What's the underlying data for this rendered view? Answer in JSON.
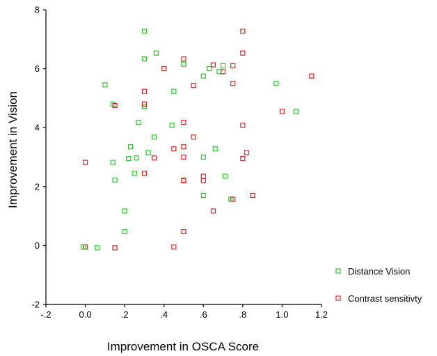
{
  "chart_data": {
    "type": "scatter",
    "xlabel": "Improvement in OSCA Score",
    "ylabel": "Improvement in Vision",
    "xlim": [
      -0.2,
      1.2
    ],
    "ylim": [
      -2,
      8
    ],
    "x_ticks": [
      -0.2,
      0.0,
      0.2,
      0.4,
      0.6,
      0.8,
      1.0,
      1.2
    ],
    "x_tick_labels": [
      "-.2",
      "0.0",
      ".2",
      ".4",
      ".6",
      ".8",
      "1.0",
      "1.2"
    ],
    "y_ticks": [
      -2,
      0,
      2,
      4,
      6,
      8
    ],
    "y_tick_labels": [
      "-2",
      "0",
      "2",
      "4",
      "6",
      "8"
    ],
    "marker": "open-square",
    "legend_position": "bottom-right",
    "series": [
      {
        "name": "Distance Vision",
        "color": "#22cc22",
        "points": [
          {
            "x": -0.01,
            "y": -0.05
          },
          {
            "x": 0.0,
            "y": -0.05
          },
          {
            "x": 0.06,
            "y": -0.08
          },
          {
            "x": 0.1,
            "y": 5.45
          },
          {
            "x": 0.14,
            "y": 4.8
          },
          {
            "x": 0.14,
            "y": 2.82
          },
          {
            "x": 0.15,
            "y": 2.22
          },
          {
            "x": 0.2,
            "y": 1.17
          },
          {
            "x": 0.2,
            "y": 0.47
          },
          {
            "x": 0.22,
            "y": 2.95
          },
          {
            "x": 0.23,
            "y": 3.35
          },
          {
            "x": 0.25,
            "y": 2.45
          },
          {
            "x": 0.26,
            "y": 2.97
          },
          {
            "x": 0.27,
            "y": 4.18
          },
          {
            "x": 0.3,
            "y": 7.27
          },
          {
            "x": 0.3,
            "y": 6.33
          },
          {
            "x": 0.3,
            "y": 4.72
          },
          {
            "x": 0.32,
            "y": 3.15
          },
          {
            "x": 0.35,
            "y": 3.68
          },
          {
            "x": 0.36,
            "y": 6.53
          },
          {
            "x": 0.44,
            "y": 4.08
          },
          {
            "x": 0.45,
            "y": 5.23
          },
          {
            "x": 0.5,
            "y": 6.15
          },
          {
            "x": 0.5,
            "y": 2.22
          },
          {
            "x": 0.6,
            "y": 5.75
          },
          {
            "x": 0.6,
            "y": 3.0
          },
          {
            "x": 0.6,
            "y": 1.7
          },
          {
            "x": 0.63,
            "y": 6.0
          },
          {
            "x": 0.66,
            "y": 3.28
          },
          {
            "x": 0.68,
            "y": 5.9
          },
          {
            "x": 0.7,
            "y": 6.1
          },
          {
            "x": 0.71,
            "y": 2.35
          },
          {
            "x": 0.74,
            "y": 1.57
          },
          {
            "x": 0.97,
            "y": 5.5
          },
          {
            "x": 1.07,
            "y": 4.55
          }
        ]
      },
      {
        "name": "Contrast sensitivty",
        "color": "#dd2222",
        "points": [
          {
            "x": 0.0,
            "y": 2.82
          },
          {
            "x": 0.0,
            "y": -0.05
          },
          {
            "x": 0.15,
            "y": 4.75
          },
          {
            "x": 0.15,
            "y": -0.08
          },
          {
            "x": 0.3,
            "y": 5.23
          },
          {
            "x": 0.3,
            "y": 4.8
          },
          {
            "x": 0.3,
            "y": 2.45
          },
          {
            "x": 0.35,
            "y": 2.97
          },
          {
            "x": 0.4,
            "y": 6.0
          },
          {
            "x": 0.45,
            "y": 3.28
          },
          {
            "x": 0.45,
            "y": -0.05
          },
          {
            "x": 0.5,
            "y": 6.33
          },
          {
            "x": 0.5,
            "y": 4.18
          },
          {
            "x": 0.5,
            "y": 3.35
          },
          {
            "x": 0.5,
            "y": 3.0
          },
          {
            "x": 0.5,
            "y": 2.2
          },
          {
            "x": 0.5,
            "y": 0.47
          },
          {
            "x": 0.55,
            "y": 5.43
          },
          {
            "x": 0.55,
            "y": 3.68
          },
          {
            "x": 0.6,
            "y": 2.35
          },
          {
            "x": 0.6,
            "y": 2.2
          },
          {
            "x": 0.65,
            "y": 6.13
          },
          {
            "x": 0.65,
            "y": 1.17
          },
          {
            "x": 0.7,
            "y": 5.9
          },
          {
            "x": 0.75,
            "y": 6.1
          },
          {
            "x": 0.75,
            "y": 5.5
          },
          {
            "x": 0.75,
            "y": 1.57
          },
          {
            "x": 0.8,
            "y": 7.27
          },
          {
            "x": 0.8,
            "y": 6.53
          },
          {
            "x": 0.8,
            "y": 4.08
          },
          {
            "x": 0.8,
            "y": 2.95
          },
          {
            "x": 0.82,
            "y": 3.15
          },
          {
            "x": 0.85,
            "y": 1.7
          },
          {
            "x": 1.0,
            "y": 4.55
          },
          {
            "x": 1.15,
            "y": 5.75
          }
        ]
      }
    ]
  }
}
